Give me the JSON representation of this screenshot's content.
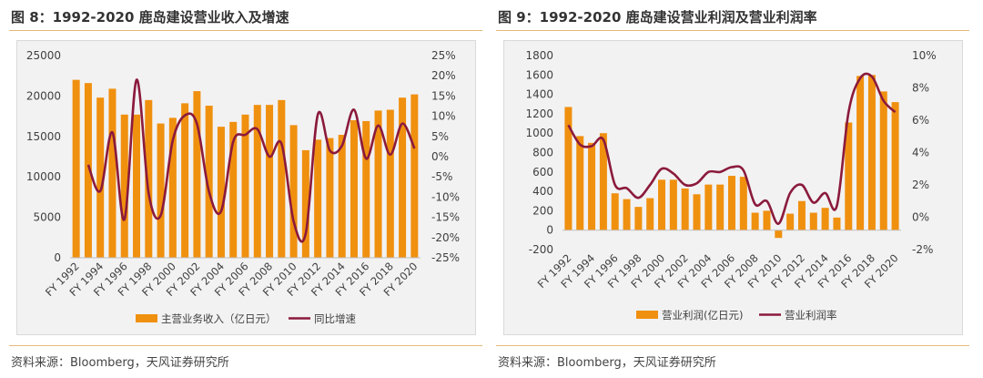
{
  "figures": [
    {
      "title": "图 8：1992-2020 鹿岛建设营业收入及增速",
      "source": "资料来源：Bloomberg，天风证券研究所"
    },
    {
      "title": "图 9：1992-2020 鹿岛建设营业利润及营业利润率",
      "source": "资料来源：Bloomberg，天风证券研究所"
    }
  ],
  "colors": {
    "bar": "#f0900f",
    "line": "#8b1a3c"
  },
  "chart_data": [
    {
      "type": "bar",
      "categories": [
        "FY 1992",
        "FY 1993",
        "FY 1994",
        "FY 1995",
        "FY 1996",
        "FY 1997",
        "FY 1998",
        "FY 1999",
        "FY 2000",
        "FY 2001",
        "FY 2002",
        "FY 2003",
        "FY 2004",
        "FY 2005",
        "FY 2006",
        "FY 2007",
        "FY 2008",
        "FY 2009",
        "FY 2010",
        "FY 2011",
        "FY 2012",
        "FY 2013",
        "FY 2014",
        "FY 2015",
        "FY 2016",
        "FY 2017",
        "FY 2018",
        "FY 2019",
        "FY 2020"
      ],
      "x_tick_labels": [
        "FY 1992",
        "FY 1994",
        "FY 1996",
        "FY 1998",
        "FY 2000",
        "FY 2002",
        "FY 2004",
        "FY 2006",
        "FY 2008",
        "FY 2010",
        "FY 2012",
        "FY 2014",
        "FY 2016",
        "FY 2018",
        "FY 2020"
      ],
      "series": [
        {
          "name": "主营业务收入（亿日元）",
          "axis": "left",
          "values": [
            22000,
            21600,
            19800,
            20900,
            17700,
            17700,
            19500,
            16600,
            17300,
            19100,
            20600,
            18800,
            16200,
            16800,
            17700,
            18900,
            18900,
            19500,
            16400,
            13300,
            14600,
            14800,
            15200,
            17000,
            16900,
            18200,
            18300,
            19800,
            20200
          ]
        },
        {
          "name": "同比增速",
          "axis": "right",
          "values": [
            null,
            -2,
            -8.5,
            6,
            -15.5,
            19,
            -9,
            -14.5,
            4,
            10.2,
            8.1,
            -8.7,
            -13.5,
            3.7,
            5.4,
            6.8,
            0,
            3.2,
            -16,
            -19,
            10.4,
            1.5,
            2.7,
            11.6,
            -0.5,
            7.7,
            0.5,
            8.2,
            2
          ]
        }
      ],
      "ylim": [
        0,
        25000
      ],
      "y_ticks": [
        0,
        5000,
        10000,
        15000,
        20000,
        25000
      ],
      "y2lim": [
        -25,
        25
      ],
      "y2_ticks": [
        "-25%",
        "-20%",
        "-15%",
        "-10%",
        "-5%",
        "0%",
        "5%",
        "10%",
        "15%",
        "20%",
        "25%"
      ],
      "grid": false,
      "legend": "bottom"
    },
    {
      "type": "bar",
      "categories": [
        "FY 1992",
        "FY 1993",
        "FY 1994",
        "FY 1995",
        "FY 1996",
        "FY 1997",
        "FY 1998",
        "FY 1999",
        "FY 2000",
        "FY 2001",
        "FY 2002",
        "FY 2003",
        "FY 2004",
        "FY 2005",
        "FY 2006",
        "FY 2007",
        "FY 2008",
        "FY 2009",
        "FY 2010",
        "FY 2011",
        "FY 2012",
        "FY 2013",
        "FY 2014",
        "FY 2015",
        "FY 2016",
        "FY 2017",
        "FY 2018",
        "FY 2019",
        "FY 2020"
      ],
      "x_tick_labels": [
        "FY 1992",
        "FY 1994",
        "FY 1996",
        "FY 1998",
        "FY 2000",
        "FY 2002",
        "FY 2004",
        "FY 2006",
        "FY 2008",
        "FY 2010",
        "FY 2012",
        "FY 2014",
        "FY 2016",
        "FY 2018",
        "FY 2020"
      ],
      "series": [
        {
          "name": "营业利润(亿日元)",
          "axis": "left",
          "values": [
            1270,
            970,
            900,
            1000,
            380,
            320,
            240,
            330,
            520,
            520,
            430,
            370,
            470,
            470,
            560,
            550,
            180,
            200,
            -80,
            170,
            300,
            180,
            230,
            130,
            1110,
            1590,
            1600,
            1430,
            1320
          ]
        },
        {
          "name": "营业利润率",
          "axis": "right",
          "values": [
            5.7,
            4.5,
            4.4,
            4.8,
            2.0,
            1.8,
            1.2,
            2.0,
            3.0,
            2.7,
            2.0,
            2.1,
            2.8,
            2.8,
            3.1,
            2.9,
            0.8,
            1.0,
            -0.4,
            1.5,
            2.0,
            0.9,
            1.5,
            0.7,
            6.5,
            8.6,
            8.7,
            7.2,
            6.5
          ]
        }
      ],
      "ylim": [
        -200,
        1800
      ],
      "y_ticks": [
        -200,
        0,
        200,
        400,
        600,
        800,
        1000,
        1200,
        1400,
        1600,
        1800
      ],
      "y2lim": [
        -2,
        10
      ],
      "y2_ticks": [
        "-2%",
        "0%",
        "2%",
        "4%",
        "6%",
        "8%",
        "10%"
      ],
      "grid": false,
      "legend": "bottom"
    }
  ]
}
